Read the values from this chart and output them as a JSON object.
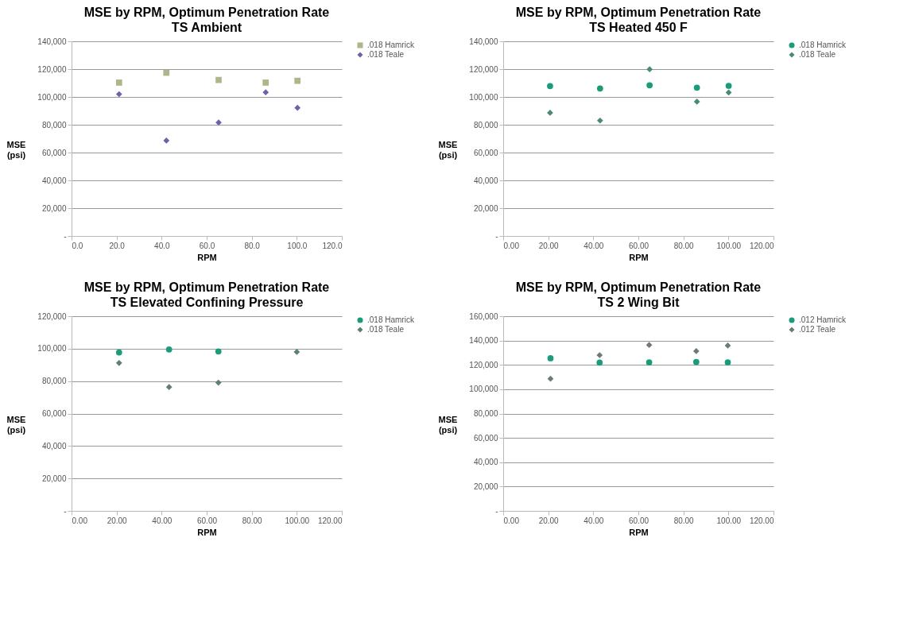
{
  "chart_data": [
    {
      "type": "scatter",
      "title": "MSE by RPM, Optimum Penetration Rate",
      "subtitle": "TS Ambient",
      "xlabel": "RPM",
      "ylabel": "MSE\n(psi)",
      "grid": "y",
      "legend": "right",
      "series": [
        {
          "name": ".018 Hamrick",
          "color": "#b0b58a",
          "marker": "square",
          "x": [
            21.1,
            42.1,
            65.3,
            86.2,
            100.3
          ],
          "values": [
            110300,
            117400,
            112200,
            110300,
            111600
          ]
        },
        {
          "name": ".018 Teale",
          "color": "#6b63a8",
          "marker": "diamond",
          "x": [
            21.1,
            42.1,
            65.3,
            86.2,
            100.3
          ],
          "values": [
            102000,
            68600,
            81600,
            103300,
            92200
          ]
        }
      ],
      "xlim": [
        0,
        120
      ],
      "xticks": [
        {
          "value": 0,
          "label": "0.0"
        },
        {
          "value": 20,
          "label": "20.0"
        },
        {
          "value": 40,
          "label": "40.0"
        },
        {
          "value": 60,
          "label": "60.0"
        },
        {
          "value": 80,
          "label": "80.0"
        },
        {
          "value": 100,
          "label": "100.0"
        },
        {
          "value": 120,
          "label": "120.0"
        }
      ],
      "ylim": [
        0,
        140000
      ],
      "yticks": [
        {
          "value": 0,
          "label": "-"
        },
        {
          "value": 20000,
          "label": "20,000"
        },
        {
          "value": 40000,
          "label": "40,000"
        },
        {
          "value": 60000,
          "label": "60,000"
        },
        {
          "value": 80000,
          "label": "80,000"
        },
        {
          "value": 100000,
          "label": "100,000"
        },
        {
          "value": 120000,
          "label": "120,000"
        },
        {
          "value": 140000,
          "label": "140,000"
        }
      ]
    },
    {
      "type": "scatter",
      "title": "MSE by RPM, Optimum Penetration Rate",
      "subtitle": "TS Heated 450 F",
      "xlabel": "RPM",
      "ylabel": "MSE\n(psi)",
      "grid": "y",
      "legend": "right",
      "series": [
        {
          "name": ".018 Hamrick",
          "color": "#1a9c78",
          "marker": "circle",
          "x": [
            20.8,
            43,
            65,
            86,
            100.1
          ],
          "values": [
            107800,
            106100,
            108400,
            106700,
            108000
          ]
        },
        {
          "name": ".018 Teale",
          "color": "#4b8a72",
          "marker": "diamond",
          "x": [
            20.8,
            43,
            65,
            86,
            100.1
          ],
          "values": [
            88600,
            83000,
            119900,
            96600,
            103200
          ]
        }
      ],
      "xlim": [
        0,
        120
      ],
      "xticks": [
        {
          "value": 0,
          "label": "0.00"
        },
        {
          "value": 20,
          "label": "20.00"
        },
        {
          "value": 40,
          "label": "40.00"
        },
        {
          "value": 60,
          "label": "60.00"
        },
        {
          "value": 80,
          "label": "80.00"
        },
        {
          "value": 100,
          "label": "100.00"
        },
        {
          "value": 120,
          "label": "120.00"
        }
      ],
      "ylim": [
        0,
        140000
      ],
      "yticks": [
        {
          "value": 0,
          "label": "-"
        },
        {
          "value": 20000,
          "label": "20,000"
        },
        {
          "value": 40000,
          "label": "40,000"
        },
        {
          "value": 60000,
          "label": "60,000"
        },
        {
          "value": 80000,
          "label": "80,000"
        },
        {
          "value": 100000,
          "label": "100,000"
        },
        {
          "value": 120000,
          "label": "120,000"
        },
        {
          "value": 140000,
          "label": "140,000"
        }
      ]
    },
    {
      "type": "scatter",
      "title": "MSE by RPM, Optimum Penetration Rate",
      "subtitle": "TS Elevated Confining Pressure",
      "xlabel": "RPM",
      "ylabel": "MSE\n(psi)",
      "grid": "y",
      "legend": "right",
      "series": [
        {
          "name": ".018 Hamrick",
          "color": "#1a9c78",
          "marker": "circle",
          "x": [
            21.1,
            43.3,
            65.2
          ],
          "values": [
            97700,
            99500,
            98300
          ]
        },
        {
          "name": ".018 Teale",
          "color": "#5e7f72",
          "marker": "diamond",
          "x": [
            21.1,
            43.3,
            65.2,
            100
          ],
          "values": [
            91200,
            76300,
            79100,
            98000
          ]
        }
      ],
      "xlim": [
        0,
        120
      ],
      "xticks": [
        {
          "value": 0,
          "label": "0.00"
        },
        {
          "value": 20,
          "label": "20.00"
        },
        {
          "value": 40,
          "label": "40.00"
        },
        {
          "value": 60,
          "label": "60.00"
        },
        {
          "value": 80,
          "label": "80.00"
        },
        {
          "value": 100,
          "label": "100.00"
        },
        {
          "value": 120,
          "label": "120.00"
        }
      ],
      "ylim": [
        0,
        120000
      ],
      "yticks": [
        {
          "value": 0,
          "label": "-"
        },
        {
          "value": 20000,
          "label": "20,000"
        },
        {
          "value": 40000,
          "label": "40,000"
        },
        {
          "value": 60000,
          "label": "60,000"
        },
        {
          "value": 80000,
          "label": "80,000"
        },
        {
          "value": 100000,
          "label": "100,000"
        },
        {
          "value": 120000,
          "label": "120,000"
        }
      ]
    },
    {
      "type": "scatter",
      "title": "MSE by RPM, Optimum Penetration Rate",
      "subtitle": "TS 2 Wing Bit",
      "xlabel": "RPM",
      "ylabel": "MSE\n(psi)",
      "grid": "y",
      "legend": "right",
      "series": [
        {
          "name": ".012 Hamrick",
          "color": "#1a9c78",
          "marker": "circle",
          "x": [
            21,
            42.8,
            64.8,
            85.7,
            99.7
          ],
          "values": [
            125400,
            121900,
            122100,
            122400,
            122100
          ]
        },
        {
          "name": ".012 Teale",
          "color": "#6e7a74",
          "marker": "diamond",
          "x": [
            21,
            42.8,
            64.8,
            85.7,
            99.7
          ],
          "values": [
            108600,
            128000,
            136400,
            131300,
            135900
          ]
        }
      ],
      "xlim": [
        0,
        120
      ],
      "xticks": [
        {
          "value": 0,
          "label": "0.00"
        },
        {
          "value": 20,
          "label": "20.00"
        },
        {
          "value": 40,
          "label": "40.00"
        },
        {
          "value": 60,
          "label": "60.00"
        },
        {
          "value": 80,
          "label": "80.00"
        },
        {
          "value": 100,
          "label": "100.00"
        },
        {
          "value": 120,
          "label": "120.00"
        }
      ],
      "ylim": [
        0,
        160000
      ],
      "yticks": [
        {
          "value": 0,
          "label": "-"
        },
        {
          "value": 20000,
          "label": "20,000"
        },
        {
          "value": 40000,
          "label": "40,000"
        },
        {
          "value": 60000,
          "label": "60,000"
        },
        {
          "value": 80000,
          "label": "80,000"
        },
        {
          "value": 100000,
          "label": "100,000"
        },
        {
          "value": 120000,
          "label": "120,000"
        },
        {
          "value": 140000,
          "label": "140,000"
        },
        {
          "value": 160000,
          "label": "160,000"
        }
      ]
    }
  ]
}
